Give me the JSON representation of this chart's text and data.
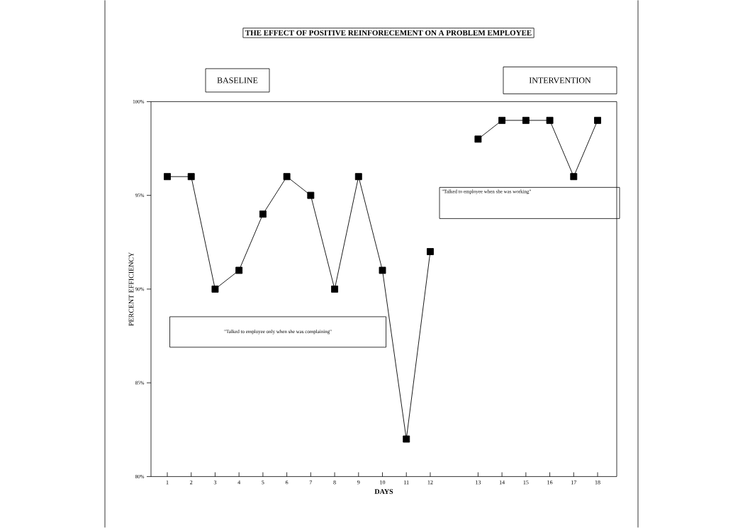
{
  "chart_data": {
    "type": "line",
    "title": "THE EFFECT OF POSITIVE REINFORECEMENT ON A PROBLEM EMPLOYEE",
    "xlabel": "DAYS",
    "ylabel": "PERCENT EFFICIENCY",
    "categories": [
      "1",
      "2",
      "3",
      "4",
      "5",
      "6",
      "7",
      "8",
      "9",
      "10",
      "11",
      "12",
      null,
      "13",
      "14",
      "15",
      "16",
      "17",
      "18"
    ],
    "values": [
      96,
      96,
      90,
      91,
      94,
      96,
      95,
      90,
      96,
      91,
      82,
      92,
      null,
      98,
      99,
      99,
      99,
      96,
      99
    ],
    "color": "#000000",
    "marker": "square",
    "line_style": "solid",
    "ylim": [
      80,
      100
    ],
    "yticks": [
      {
        "value": 80,
        "label": "80%"
      },
      {
        "value": 85,
        "label": "85%"
      },
      {
        "value": 90,
        "label": "90%"
      },
      {
        "value": 95,
        "label": "95%"
      },
      {
        "value": 100,
        "label": "100%"
      }
    ],
    "annotations": [
      "BASELINE",
      "INTERVENTION",
      "\"Talked to employee when she was working\"",
      "\"Talked to employee only when she was complaining\""
    ]
  }
}
